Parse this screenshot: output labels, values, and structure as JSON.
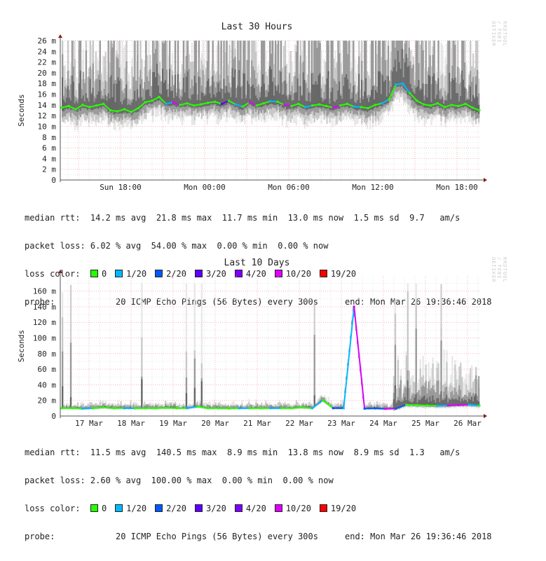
{
  "watermark": "RRDTOOL / TOBI OETIKER",
  "legend_colors": [
    {
      "label": "0",
      "color": "#26ff00"
    },
    {
      "label": "1/20",
      "color": "#00b8ff"
    },
    {
      "label": "2/20",
      "color": "#0059ff"
    },
    {
      "label": "3/20",
      "color": "#5e00ff"
    },
    {
      "label": "4/20",
      "color": "#7e00ff"
    },
    {
      "label": "10/20",
      "color": "#dd00ff"
    },
    {
      "label": "19/20",
      "color": "#ff0000"
    }
  ],
  "chart_data": [
    {
      "type": "line",
      "title": "Last 30 Hours",
      "ylabel": "Seconds",
      "ylim": [
        0,
        26
      ],
      "yunit": "m",
      "yticks": [
        "0",
        "2 m",
        "4 m",
        "6 m",
        "8 m",
        "10 m",
        "12 m",
        "14 m",
        "16 m",
        "18 m",
        "20 m",
        "22 m",
        "24 m",
        "26 m"
      ],
      "xticks": [
        "Sun 18:00",
        "Mon 00:00",
        "Mon 06:00",
        "Mon 12:00",
        "Mon 18:00"
      ],
      "x_interval": "30 min",
      "x_end": "Mon Mar 26 19:36:46 2018",
      "series": [
        {
          "name": "median rtt",
          "values": [
            13.5,
            13.8,
            13.2,
            14.0,
            13.6,
            13.9,
            14.2,
            13.0,
            12.8,
            13.2,
            12.7,
            13.4,
            14.5,
            14.8,
            15.5,
            14.2,
            14.5,
            14.0,
            14.3,
            13.9,
            14.1,
            14.4,
            14.6,
            14.2,
            14.8,
            14.1,
            13.7,
            14.5,
            13.9,
            14.3,
            14.7,
            14.6,
            14.0,
            13.8,
            14.2,
            13.6,
            13.9,
            14.1,
            13.8,
            13.5,
            13.9,
            14.2,
            13.7,
            13.6,
            13.4,
            14.0,
            14.3,
            15.0,
            17.8,
            18.0,
            16.2,
            14.8,
            14.1,
            13.9,
            14.3,
            13.6,
            14.0,
            13.8,
            14.2,
            13.5,
            13.0
          ],
          "loss": [
            0,
            0,
            0,
            0,
            0,
            0,
            0,
            0,
            0,
            0,
            0,
            0,
            0,
            0,
            0,
            1,
            5,
            0,
            0,
            0,
            0,
            0,
            0,
            3,
            0,
            1,
            0,
            5,
            0,
            0,
            1,
            0,
            5,
            0,
            0,
            1,
            0,
            0,
            0,
            5,
            0,
            0,
            1,
            0,
            0,
            0,
            1,
            0,
            1,
            1,
            0,
            0,
            0,
            0,
            0,
            0,
            0,
            0,
            0,
            0,
            0
          ]
        }
      ],
      "stats": {
        "median_rtt": "median rtt:  14.2 ms avg  21.8 ms max  11.7 ms min  13.0 ms now  1.5 ms sd  9.7   am/s",
        "packet_loss": "packet loss: 6.02 % avg  54.00 % max  0.00 % min  0.00 % now",
        "loss_color_label": "loss color:",
        "probe_label": "probe:",
        "probe": "20 ICMP Echo Pings (56 Bytes) every 300s",
        "end": "end: Mon Mar 26 19:36:46 2018"
      }
    },
    {
      "type": "line",
      "title": "Last 10 Days",
      "ylabel": "Seconds",
      "ylim": [
        0,
        170
      ],
      "yunit": "m",
      "yticks": [
        "0",
        "20 m",
        "40 m",
        "60 m",
        "80 m",
        "100 m",
        "120 m",
        "140 m",
        "160 m"
      ],
      "xticks": [
        "17 Mar",
        "18 Mar",
        "19 Mar",
        "20 Mar",
        "21 Mar",
        "22 Mar",
        "23 Mar",
        "24 Mar",
        "25 Mar",
        "26 Mar"
      ],
      "x_interval": "6 h",
      "x_end": "Mon Mar 26 19:36:46 2018",
      "series": [
        {
          "name": "median rtt",
          "values": [
            10,
            10,
            9.5,
            10,
            11,
            10,
            10,
            9.8,
            10,
            10,
            10.5,
            10,
            10,
            12,
            10,
            10,
            9.7,
            10,
            10,
            10,
            10,
            10,
            10,
            11,
            10,
            20,
            10,
            10,
            140,
            9.5,
            9.8,
            9.2,
            9.5,
            14.5,
            14,
            13.5,
            13,
            13.5,
            14,
            14.5,
            13.5
          ],
          "loss": [
            0,
            0,
            1,
            0,
            0,
            0,
            1,
            0,
            0,
            0,
            0,
            0,
            1,
            0,
            0,
            0,
            0,
            1,
            0,
            0,
            1,
            0,
            0,
            0,
            1,
            0,
            2,
            1,
            5,
            2,
            2,
            5,
            2,
            0,
            0,
            0,
            1,
            5,
            5,
            1,
            0
          ]
        }
      ],
      "stats": {
        "median_rtt": "median rtt:  11.5 ms avg  140.5 ms max  8.9 ms min  13.8 ms now  8.9 ms sd  1.3   am/s",
        "packet_loss": "packet loss: 2.60 % avg  100.00 % max  0.00 % min  0.00 % now",
        "loss_color_label": "loss color:",
        "probe_label": "probe:",
        "probe": "20 ICMP Echo Pings (56 Bytes) every 300s",
        "end": "end: Mon Mar 26 19:36:46 2018"
      }
    }
  ]
}
